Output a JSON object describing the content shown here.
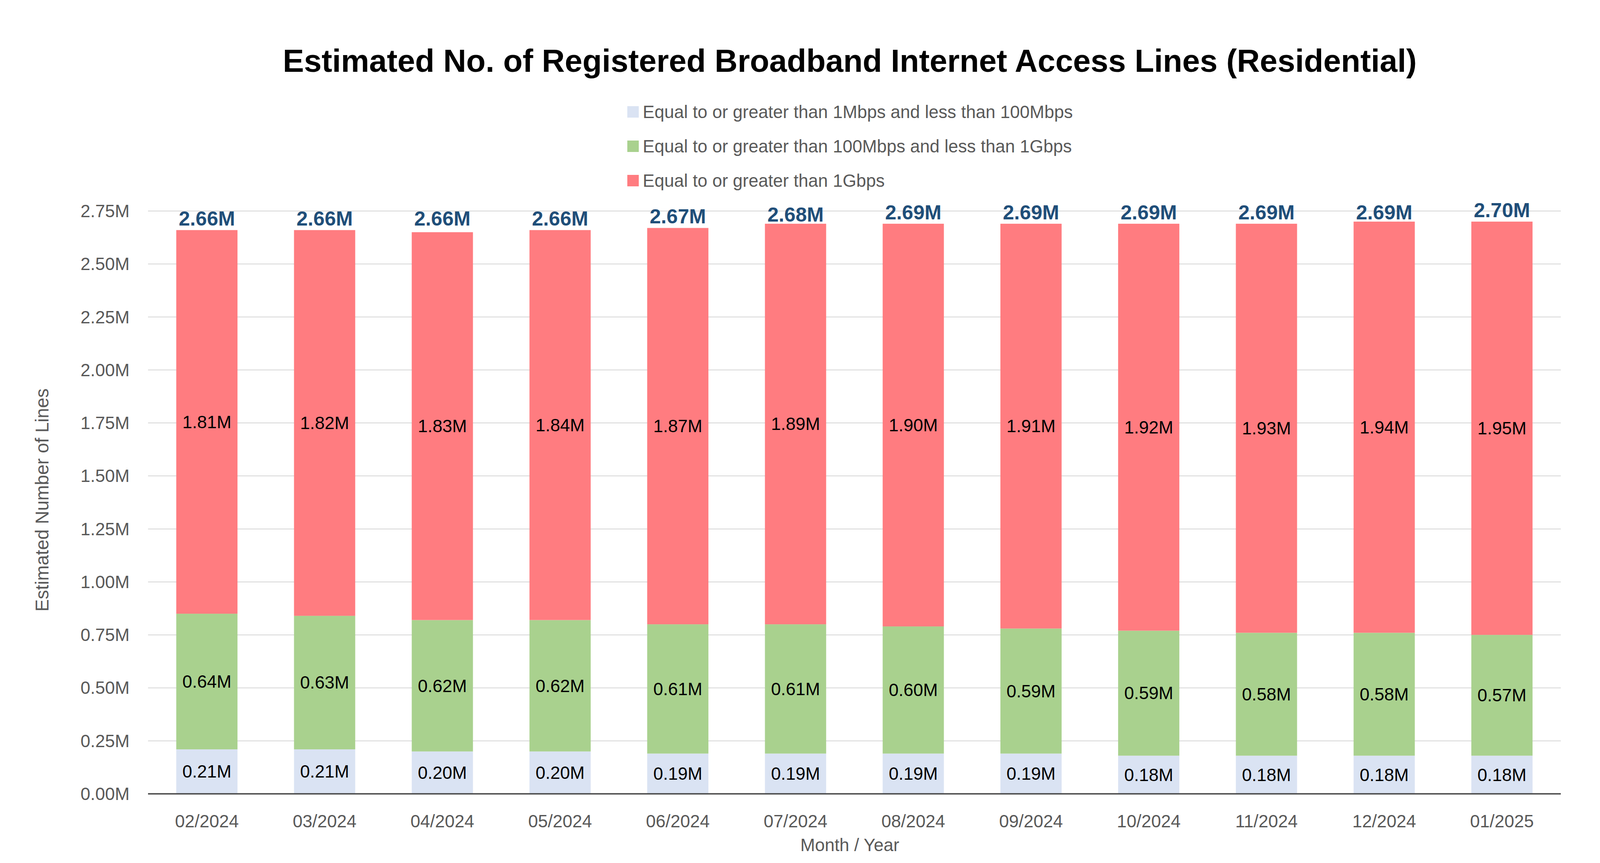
{
  "chart_data": {
    "type": "bar",
    "title": "Estimated No. of Registered Broadband Internet Access Lines (Residential)",
    "x_label": "Month / Year",
    "y_label": "Estimated Number of Lines",
    "categories": [
      "02/2024",
      "03/2024",
      "04/2024",
      "05/2024",
      "06/2024",
      "07/2024",
      "08/2024",
      "09/2024",
      "10/2024",
      "11/2024",
      "12/2024",
      "01/2025"
    ],
    "series": [
      {
        "name": "Equal to or greater than 1Mbps and less than 100Mbps",
        "color": "#dae3f3",
        "values": [
          0.21,
          0.21,
          0.2,
          0.2,
          0.19,
          0.19,
          0.19,
          0.19,
          0.18,
          0.18,
          0.18,
          0.18
        ],
        "value_labels": [
          "0.21M",
          "0.21M",
          "0.20M",
          "0.20M",
          "0.19M",
          "0.19M",
          "0.19M",
          "0.19M",
          "0.18M",
          "0.18M",
          "0.18M",
          "0.18M"
        ]
      },
      {
        "name": "Equal to or greater than 100Mbps and less than 1Gbps",
        "color": "#a9d18e",
        "values": [
          0.64,
          0.63,
          0.62,
          0.62,
          0.61,
          0.61,
          0.6,
          0.59,
          0.59,
          0.58,
          0.58,
          0.57
        ],
        "value_labels": [
          "0.64M",
          "0.63M",
          "0.62M",
          "0.62M",
          "0.61M",
          "0.61M",
          "0.60M",
          "0.59M",
          "0.59M",
          "0.58M",
          "0.58M",
          "0.57M"
        ]
      },
      {
        "name": "Equal to or greater than 1Gbps",
        "color": "#ff7c80",
        "values": [
          1.81,
          1.82,
          1.83,
          1.84,
          1.87,
          1.89,
          1.9,
          1.91,
          1.92,
          1.93,
          1.94,
          1.95
        ],
        "value_labels": [
          "1.81M",
          "1.82M",
          "1.83M",
          "1.84M",
          "1.87M",
          "1.89M",
          "1.90M",
          "1.91M",
          "1.92M",
          "1.93M",
          "1.94M",
          "1.95M"
        ]
      }
    ],
    "totals": {
      "values": [
        2.66,
        2.66,
        2.66,
        2.66,
        2.67,
        2.68,
        2.69,
        2.69,
        2.69,
        2.69,
        2.69,
        2.7
      ],
      "value_labels": [
        "2.66M",
        "2.66M",
        "2.66M",
        "2.66M",
        "2.67M",
        "2.68M",
        "2.69M",
        "2.69M",
        "2.69M",
        "2.69M",
        "2.69M",
        "2.70M"
      ]
    },
    "ylim": [
      0,
      2.75
    ],
    "yticks": [
      {
        "value": 0,
        "label": "0.00M"
      },
      {
        "value": 0.25,
        "label": "0.25M"
      },
      {
        "value": 0.5,
        "label": "0.50M"
      },
      {
        "value": 0.75,
        "label": "0.75M"
      },
      {
        "value": 1,
        "label": "1.00M"
      },
      {
        "value": 1.25,
        "label": "1.25M"
      },
      {
        "value": 1.5,
        "label": "1.50M"
      },
      {
        "value": 1.75,
        "label": "1.75M"
      },
      {
        "value": 2,
        "label": "2.00M"
      },
      {
        "value": 2.25,
        "label": "2.25M"
      },
      {
        "value": 2.5,
        "label": "2.50M"
      },
      {
        "value": 2.75,
        "label": "2.75M"
      }
    ],
    "stacked": true,
    "data_labels": true,
    "grid": true,
    "legend": "top"
  }
}
